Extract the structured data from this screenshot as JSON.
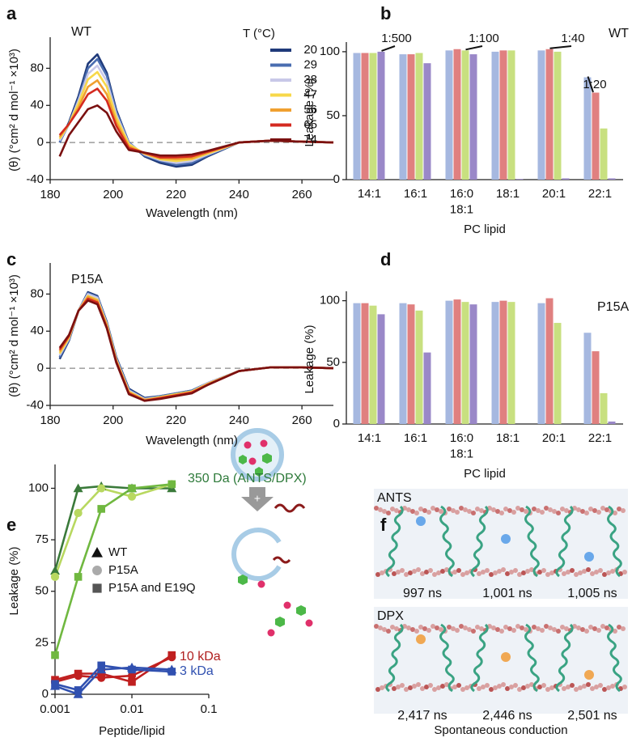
{
  "chart_data": [
    {
      "type": "line",
      "panel": "a",
      "annotation": "WT",
      "legend_title": "T (°C)",
      "ylabel": "(θ) (°cm² d mol⁻¹ ×10³)",
      "xlabel": "Wavelength (nm)",
      "x": [
        183,
        186,
        189,
        192,
        195,
        198,
        201,
        205,
        210,
        215,
        220,
        225,
        230,
        240,
        250,
        260,
        270
      ],
      "series": [
        {
          "name": "20",
          "color": "#1f3a7a",
          "values": [
            0,
            22,
            50,
            85,
            95,
            75,
            35,
            0,
            -15,
            -22,
            -26,
            -24,
            -15,
            0,
            2,
            1,
            0
          ]
        },
        {
          "name": "29",
          "color": "#4a6db0",
          "values": [
            0,
            20,
            47,
            80,
            90,
            72,
            33,
            0,
            -14,
            -20,
            -24,
            -22,
            -14,
            0,
            2,
            1,
            0
          ]
        },
        {
          "name": "38",
          "color": "#c8c8e8",
          "values": [
            2,
            20,
            45,
            74,
            83,
            66,
            30,
            -1,
            -13,
            -19,
            -22,
            -20,
            -13,
            0,
            2,
            1,
            0
          ]
        },
        {
          "name": "47",
          "color": "#f7d84a",
          "values": [
            4,
            20,
            42,
            68,
            76,
            60,
            27,
            -2,
            -12,
            -18,
            -20,
            -18,
            -12,
            0,
            2,
            1,
            0
          ]
        },
        {
          "name": "56",
          "color": "#f0a030",
          "values": [
            6,
            20,
            38,
            60,
            67,
            52,
            22,
            -4,
            -12,
            -17,
            -18,
            -17,
            -11,
            0,
            2,
            1,
            0
          ]
        },
        {
          "name": "65",
          "color": "#d42a20",
          "values": [
            8,
            20,
            35,
            52,
            58,
            45,
            18,
            -6,
            -11,
            -16,
            -16,
            -15,
            -10,
            0,
            2,
            1,
            0
          ]
        },
        {
          "name": "74",
          "color": "#7a1010",
          "values": [
            -15,
            8,
            22,
            36,
            40,
            32,
            12,
            -8,
            -11,
            -14,
            -14,
            -13,
            -9,
            0,
            2,
            1,
            0
          ]
        }
      ],
      "xlim": [
        180,
        270
      ],
      "xticks": [
        180,
        200,
        220,
        240,
        260
      ],
      "ylim": [
        -40,
        110
      ],
      "yticks": [
        -40,
        0,
        40,
        80
      ],
      "reference_line": 0
    },
    {
      "type": "bar",
      "panel": "b",
      "annotation": "WT",
      "ylabel": "Leakage (%)",
      "xlabel": "PC lipid",
      "categories": [
        "14:1",
        "16:1",
        "16:0\n18:1",
        "18:1",
        "20:1",
        "22:1"
      ],
      "series": [
        {
          "name": "1:20",
          "color": "#a6b8e0",
          "values": [
            99,
            98,
            101,
            100,
            101,
            80
          ]
        },
        {
          "name": "1:40",
          "color": "#e08080",
          "values": [
            99,
            98,
            102,
            101,
            102,
            68
          ]
        },
        {
          "name": "1:100",
          "color": "#c8e080",
          "values": [
            99,
            99,
            101,
            101,
            100,
            40
          ]
        },
        {
          "name": "1:500",
          "color": "#9a88c8",
          "values": [
            100,
            91,
            98,
            0.5,
            1,
            1
          ]
        }
      ],
      "ylim": [
        0,
        105
      ],
      "yticks": [
        0,
        50,
        100
      ]
    },
    {
      "type": "line",
      "panel": "c",
      "annotation": "P15A",
      "ylabel": "(θ) (°cm² d mol⁻¹ ×10³)",
      "xlabel": "Wavelength (nm)",
      "x": [
        183,
        186,
        189,
        192,
        195,
        198,
        201,
        205,
        210,
        215,
        220,
        225,
        230,
        240,
        250,
        260,
        270
      ],
      "series": [
        {
          "color": "#1f3a7a",
          "values": [
            10,
            30,
            62,
            82,
            78,
            50,
            12,
            -22,
            -32,
            -30,
            -27,
            -24,
            -16,
            -3,
            1,
            1,
            0
          ]
        },
        {
          "color": "#4a6db0",
          "values": [
            12,
            31,
            62,
            81,
            77,
            49,
            11,
            -23,
            -33,
            -30,
            -27,
            -24,
            -16,
            -3,
            1,
            1,
            0
          ]
        },
        {
          "color": "#c8c8e8",
          "values": [
            14,
            32,
            62,
            80,
            76,
            48,
            10,
            -24,
            -33,
            -31,
            -28,
            -25,
            -16,
            -3,
            1,
            1,
            0
          ]
        },
        {
          "color": "#f7d84a",
          "values": [
            16,
            33,
            62,
            78,
            74,
            47,
            9,
            -25,
            -34,
            -31,
            -28,
            -25,
            -17,
            -3,
            1,
            1,
            0
          ]
        },
        {
          "color": "#f0a030",
          "values": [
            18,
            34,
            62,
            77,
            73,
            46,
            8,
            -26,
            -34,
            -32,
            -29,
            -26,
            -17,
            -3,
            1,
            1,
            0
          ]
        },
        {
          "color": "#d42a20",
          "values": [
            20,
            35,
            62,
            75,
            71,
            44,
            7,
            -27,
            -35,
            -32,
            -29,
            -26,
            -18,
            -3,
            1,
            1,
            0
          ]
        },
        {
          "color": "#7a1010",
          "values": [
            22,
            36,
            62,
            73,
            69,
            43,
            6,
            -28,
            -35,
            -33,
            -30,
            -27,
            -18,
            -3,
            1,
            1,
            0
          ]
        }
      ],
      "xlim": [
        180,
        270
      ],
      "xticks": [
        180,
        200,
        220,
        240,
        260
      ],
      "ylim": [
        -40,
        110
      ],
      "yticks": [
        -40,
        0,
        40,
        80
      ],
      "reference_line": 0
    },
    {
      "type": "bar",
      "panel": "d",
      "annotation": "P15A",
      "ylabel": "Leakage (%)",
      "xlabel": "PC lipid",
      "categories": [
        "14:1",
        "16:1",
        "16:0\n18:1",
        "18:1",
        "20:1",
        "22:1"
      ],
      "series": [
        {
          "color": "#a6b8e0",
          "values": [
            98,
            98,
            100,
            99,
            98,
            74
          ]
        },
        {
          "color": "#e08080",
          "values": [
            98,
            97,
            101,
            100,
            102,
            59
          ]
        },
        {
          "color": "#c8e080",
          "values": [
            96,
            92,
            99,
            99,
            82,
            25
          ]
        },
        {
          "color": "#9a88c8",
          "values": [
            89,
            58,
            97,
            0,
            0,
            2
          ]
        }
      ],
      "ylim": [
        0,
        105
      ],
      "yticks": [
        0,
        50,
        100
      ]
    },
    {
      "type": "scatter",
      "panel": "e",
      "ylabel": "Leakage (%)",
      "xlabel": "Peptide/lipid",
      "x": [
        0.001,
        0.002,
        0.004,
        0.01,
        0.033
      ],
      "xlog": true,
      "xlim": [
        0.001,
        0.1
      ],
      "xticks": [
        0.001,
        0.01,
        0.1
      ],
      "ylim": [
        0,
        110
      ],
      "yticks": [
        0,
        25,
        50,
        75,
        100
      ],
      "series": [
        {
          "color": "#3a7a3a",
          "marker": "triangle",
          "values": [
            60,
            100,
            101,
            100,
            100
          ]
        },
        {
          "color": "#b8d860",
          "marker": "circle",
          "values": [
            57,
            88,
            100,
            96,
            102
          ]
        },
        {
          "color": "#70b840",
          "marker": "square",
          "values": [
            19,
            57,
            90,
            100,
            102
          ]
        },
        {
          "color": "#c02020",
          "marker": "square",
          "values": [
            7,
            10,
            10,
            6,
            19
          ]
        },
        {
          "color": "#c02020",
          "marker": "circle",
          "values": [
            6,
            9,
            8,
            9,
            18
          ]
        },
        {
          "color": "#3050b0",
          "marker": "square",
          "values": [
            5,
            2,
            14,
            12,
            11
          ]
        },
        {
          "color": "#3050b0",
          "marker": "triangle",
          "values": [
            4,
            0,
            12,
            13,
            12
          ]
        }
      ],
      "legend": [
        {
          "label": "WT",
          "marker": "triangle",
          "color": "#111111"
        },
        {
          "label": "P15A",
          "marker": "circle",
          "color": "#aaaaaa"
        },
        {
          "label": "P15A and E19Q",
          "marker": "square",
          "color": "#555555"
        }
      ],
      "annotations": [
        {
          "text": "350 Da (ANTS/DPX)",
          "color": "#2e7a3a"
        },
        {
          "text": "10 kDa",
          "color": "#b02020"
        },
        {
          "text": "3 kDa",
          "color": "#3050b0"
        }
      ]
    }
  ],
  "simulation": {
    "panel": "f",
    "caption": "Spontaneous conduction",
    "strips": [
      {
        "label": "ANTS",
        "times": [
          "997 ns",
          "1,001 ns",
          "1,005 ns"
        ]
      },
      {
        "label": "DPX",
        "times": [
          "2,417 ns",
          "2,446 ns",
          "2,501 ns"
        ]
      }
    ]
  }
}
